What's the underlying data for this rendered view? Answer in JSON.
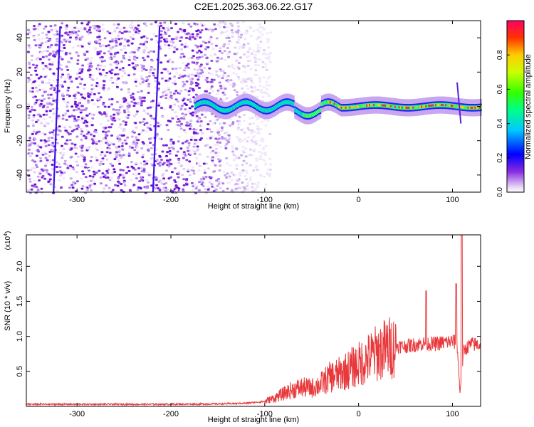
{
  "title": "C2E1.2025.363.06.22.G17",
  "chart_data": [
    {
      "type": "heatmap",
      "title": "C2E1.2025.363.06.22.G17",
      "xlabel": "Height of straight line (km)",
      "ylabel": "Frequency (Hz)",
      "xlim": [
        -354,
        130
      ],
      "ylim": [
        -50,
        50
      ],
      "xticks": [
        -300,
        -200,
        -100,
        0,
        100
      ],
      "xtick_labels": [
        "-300",
        "-200",
        "-100",
        "0",
        "100"
      ],
      "yticks": [
        -40,
        -20,
        0,
        20,
        40
      ],
      "ytick_labels": [
        "-40",
        "-20",
        "0",
        "20",
        "40"
      ],
      "noise_region_km": [
        -354,
        -100
      ],
      "signal_start_km": -175,
      "signal_center_hz": 0,
      "streaks_km": [
        -322,
        -216
      ],
      "spike_km": 108,
      "colorbar": {
        "label": "Normalized spectral amplitude",
        "range": [
          0.0,
          1.0
        ],
        "ticks": [
          0.0,
          0.2,
          0.4,
          0.6,
          0.8
        ],
        "tick_labels": [
          "0.0",
          "0.2",
          "0.4",
          "0.6",
          "0.8"
        ]
      }
    },
    {
      "type": "line",
      "xlabel": "Height of straight line (km)",
      "ylabel": "SNR (10 * v/v)",
      "multiplier_label": "(x10",
      "multiplier_exp": "4",
      "multiplier_close": ")",
      "xlim": [
        -354,
        130
      ],
      "ylim": [
        0,
        24500
      ],
      "xticks": [
        -300,
        -200,
        -100,
        0,
        100
      ],
      "xtick_labels": [
        "-300",
        "-200",
        "-100",
        "0",
        "100"
      ],
      "yticks": [
        5000,
        10000,
        15000,
        20000
      ],
      "ytick_labels": [
        "0.5",
        "1.0",
        "1.5",
        "2.0"
      ],
      "color": "#e8383b",
      "series": [
        {
          "name": "SNR",
          "x": [
            -354,
            -300,
            -250,
            -200,
            -150,
            -120,
            -100,
            -90,
            -80,
            -70,
            -60,
            -50,
            -40,
            -30,
            -20,
            -10,
            0,
            10,
            20,
            30,
            40,
            50,
            60,
            70,
            80,
            90,
            100,
            105,
            108,
            112,
            120,
            130
          ],
          "y": [
            300,
            300,
            300,
            300,
            350,
            450,
            700,
            1200,
            1800,
            2400,
            2700,
            2600,
            3200,
            4200,
            4600,
            5300,
            6000,
            6800,
            7700,
            8300,
            8600,
            8600,
            8800,
            9000,
            8900,
            9100,
            9300,
            9000,
            2000,
            8000,
            8900,
            8800
          ]
        }
      ],
      "annotations": [
        {
          "x": 72,
          "y": 16500,
          "text": ""
        },
        {
          "x": 104,
          "y": 17500,
          "text": ""
        },
        {
          "x": 110,
          "y": 24500,
          "text": ""
        }
      ]
    }
  ]
}
